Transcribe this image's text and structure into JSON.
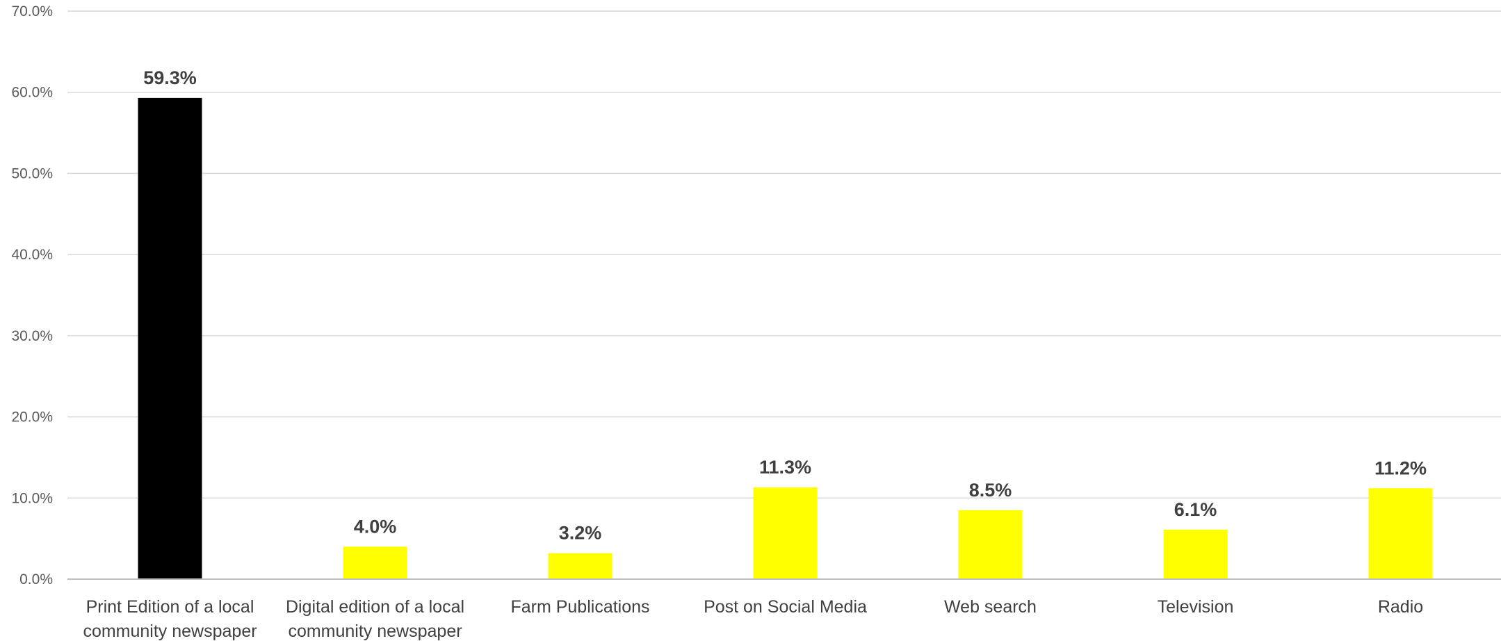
{
  "chart_data": {
    "type": "bar",
    "categories": [
      "Print Edition of a local community newspaper",
      "Digital edition of a local community newspaper",
      "Farm Publications",
      "Post on Social Media",
      "Web search",
      "Television",
      "Radio"
    ],
    "category_lines": [
      [
        "Print Edition of a local",
        "community newspaper"
      ],
      [
        "Digital edition of a local",
        "community newspaper"
      ],
      [
        "Farm Publications"
      ],
      [
        "Post on Social Media"
      ],
      [
        "Web search"
      ],
      [
        "Television"
      ],
      [
        "Radio"
      ]
    ],
    "values": [
      59.3,
      4.0,
      3.2,
      11.3,
      8.5,
      6.1,
      11.2
    ],
    "data_labels": [
      "59.3%",
      "4.0%",
      "3.2%",
      "11.3%",
      "8.5%",
      "6.1%",
      "11.2%"
    ],
    "bar_colors": [
      "#000000",
      "#ffff00",
      "#ffff00",
      "#ffff00",
      "#ffff00",
      "#ffff00",
      "#ffff00"
    ],
    "title": "",
    "xlabel": "",
    "ylabel": "",
    "ylim": [
      0,
      70
    ],
    "yticks": [
      0,
      10,
      20,
      30,
      40,
      50,
      60,
      70
    ],
    "ytick_labels": [
      "0.0%",
      "10.0%",
      "20.0%",
      "30.0%",
      "40.0%",
      "50.0%",
      "60.0%",
      "70.0%"
    ],
    "grid": true,
    "legend": "none"
  }
}
